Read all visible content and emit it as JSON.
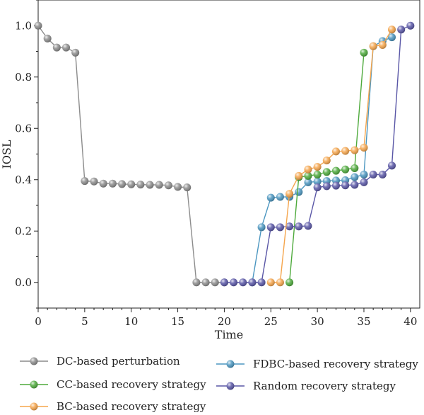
{
  "chart_data": {
    "type": "line",
    "xlabel": "Time",
    "ylabel": "IOSL",
    "xlim": [
      0,
      41
    ],
    "ylim": [
      -0.1,
      1.1
    ],
    "xticks": [
      0,
      5,
      10,
      15,
      20,
      25,
      30,
      35,
      40
    ],
    "xtick_labels": [
      "0",
      "5",
      "10",
      "15",
      "20",
      "25",
      "30",
      "35",
      "40"
    ],
    "yticks": [
      0.0,
      0.2,
      0.4,
      0.6,
      0.8,
      1.0
    ],
    "ytick_labels": [
      "0.0",
      "0.2",
      "0.4",
      "0.6",
      "0.8",
      "1.0"
    ],
    "grid": false,
    "legend_position": "bottom",
    "series": [
      {
        "name": "DC-based perturbation",
        "color": "#8c8c8c",
        "x": [
          0,
          1,
          2,
          3,
          4,
          5,
          6,
          7,
          8,
          9,
          10,
          11,
          12,
          13,
          14,
          15,
          16,
          17,
          18,
          19,
          20
        ],
        "y": [
          1.0,
          0.95,
          0.915,
          0.915,
          0.895,
          0.395,
          0.393,
          0.385,
          0.385,
          0.383,
          0.382,
          0.381,
          0.38,
          0.38,
          0.378,
          0.372,
          0.37,
          0.0,
          0.0,
          0.0,
          0.0
        ]
      },
      {
        "name": "FDBC-based recovery strategy",
        "color": "#4b96c0",
        "x": [
          23,
          24,
          25,
          26,
          27,
          28,
          29,
          30,
          31,
          32,
          33,
          34,
          35,
          36,
          37,
          38
        ],
        "y": [
          0.0,
          0.215,
          0.33,
          0.333,
          0.333,
          0.352,
          0.39,
          0.393,
          0.395,
          0.397,
          0.398,
          0.41,
          0.42,
          0.92,
          0.94,
          0.955
        ]
      },
      {
        "name": "CC-based recovery strategy",
        "color": "#4eaa3c",
        "x": [
          27,
          28,
          29,
          30,
          31,
          32,
          33,
          34,
          35
        ],
        "y": [
          0.0,
          0.41,
          0.415,
          0.42,
          0.43,
          0.435,
          0.44,
          0.445,
          0.895
        ]
      },
      {
        "name": "Random recovery strategy",
        "color": "#5956a6",
        "x": [
          20,
          21,
          22,
          23,
          24,
          25,
          26,
          27,
          28,
          29,
          30,
          31,
          32,
          33,
          34,
          35,
          36,
          37,
          38,
          39,
          40
        ],
        "y": [
          0.0,
          0.0,
          0.0,
          0.0,
          0.0,
          0.215,
          0.215,
          0.218,
          0.218,
          0.22,
          0.37,
          0.375,
          0.377,
          0.378,
          0.38,
          0.39,
          0.42,
          0.42,
          0.455,
          0.985,
          1.0
        ]
      },
      {
        "name": "BC-based recovery strategy",
        "color": "#f5a54c",
        "x": [
          25,
          26,
          27,
          28,
          29,
          30,
          31,
          32,
          33,
          34,
          35,
          36,
          37,
          38
        ],
        "y": [
          0.0,
          0.0,
          0.345,
          0.415,
          0.44,
          0.45,
          0.475,
          0.51,
          0.512,
          0.515,
          0.525,
          0.92,
          0.925,
          0.985
        ]
      }
    ],
    "legend": [
      {
        "name": "DC-based perturbation",
        "color": "#8c8c8c"
      },
      {
        "name": "FDBC-based recovery strategy",
        "color": "#4b96c0"
      },
      {
        "name": "CC-based recovery strategy",
        "color": "#4eaa3c"
      },
      {
        "name": "Random recovery strategy",
        "color": "#5956a6"
      },
      {
        "name": "BC-based recovery strategy",
        "color": "#f5a54c"
      }
    ]
  }
}
